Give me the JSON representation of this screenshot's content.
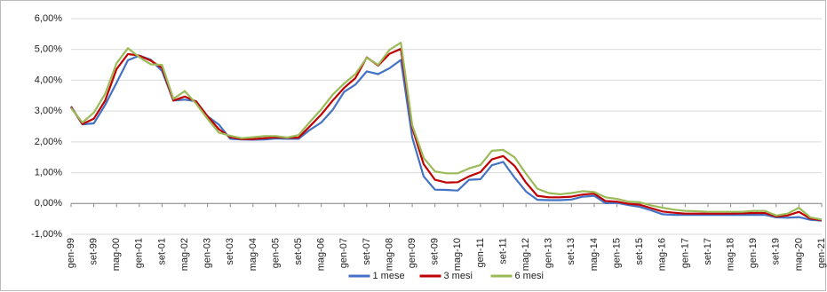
{
  "chart_data": {
    "type": "line",
    "categories": [
      "gen-99",
      null,
      "set-99",
      null,
      "mag-00",
      null,
      "gen-01",
      null,
      "set-01",
      null,
      "mag-02",
      null,
      "gen-03",
      null,
      "set-03",
      null,
      "mag-04",
      null,
      "gen-05",
      null,
      "set-05",
      null,
      "mag-06",
      null,
      "gen-07",
      null,
      "set-07",
      null,
      "mag-08",
      null,
      "gen-09",
      null,
      "set-09",
      null,
      "mag-10",
      null,
      "gen-11",
      null,
      "set-11",
      null,
      "mag-12",
      null,
      "gen-13",
      null,
      "set-13",
      null,
      "mag-14",
      null,
      "gen-15",
      null,
      "set-15",
      null,
      "mag-16",
      null,
      "gen-17",
      null,
      "set-17",
      null,
      "mag-18",
      null,
      "gen-19",
      null,
      "set-19",
      null,
      "mag-20",
      null,
      "gen-21"
    ],
    "series": [
      {
        "name": "1 mese",
        "color": "#4472c4",
        "values": [
          3.15,
          2.57,
          2.6,
          3.2,
          3.92,
          4.65,
          4.8,
          4.67,
          4.3,
          3.34,
          3.37,
          3.32,
          2.83,
          2.56,
          2.1,
          2.08,
          2.07,
          2.08,
          2.11,
          2.1,
          2.1,
          2.39,
          2.63,
          3.04,
          3.62,
          3.86,
          4.29,
          4.2,
          4.39,
          4.66,
          2.14,
          0.88,
          0.45,
          0.44,
          0.42,
          0.77,
          0.79,
          1.24,
          1.35,
          0.84,
          0.39,
          0.12,
          0.11,
          0.11,
          0.13,
          0.22,
          0.25,
          0.01,
          0.02,
          -0.05,
          -0.11,
          -0.22,
          -0.35,
          -0.37,
          -0.37,
          -0.37,
          -0.37,
          -0.37,
          -0.37,
          -0.37,
          -0.37,
          -0.37,
          -0.45,
          -0.46,
          -0.44,
          -0.53,
          -0.56
        ]
      },
      {
        "name": "3 mesi",
        "color": "#c00000",
        "values": [
          3.13,
          2.58,
          2.75,
          3.34,
          4.36,
          4.85,
          4.8,
          4.64,
          4.4,
          3.34,
          3.47,
          3.31,
          2.83,
          2.41,
          2.15,
          2.09,
          2.09,
          2.12,
          2.15,
          2.13,
          2.14,
          2.51,
          2.89,
          3.34,
          3.75,
          4.07,
          4.74,
          4.48,
          4.86,
          5.02,
          2.46,
          1.28,
          0.77,
          0.68,
          0.69,
          0.88,
          1.02,
          1.43,
          1.54,
          1.22,
          0.68,
          0.25,
          0.2,
          0.2,
          0.22,
          0.29,
          0.32,
          0.08,
          0.06,
          -0.01,
          -0.04,
          -0.15,
          -0.26,
          -0.3,
          -0.33,
          -0.33,
          -0.33,
          -0.33,
          -0.33,
          -0.32,
          -0.31,
          -0.31,
          -0.42,
          -0.39,
          -0.27,
          -0.49,
          -0.54
        ]
      },
      {
        "name": "6 mesi",
        "color": "#9bbb59",
        "values": [
          3.1,
          2.63,
          2.95,
          3.56,
          4.55,
          5.04,
          4.75,
          4.52,
          4.5,
          3.4,
          3.65,
          3.24,
          2.75,
          2.3,
          2.2,
          2.12,
          2.15,
          2.19,
          2.19,
          2.14,
          2.22,
          2.65,
          3.06,
          3.53,
          3.89,
          4.2,
          4.73,
          4.5,
          4.99,
          5.22,
          2.54,
          1.48,
          1.04,
          0.98,
          0.98,
          1.14,
          1.25,
          1.71,
          1.74,
          1.5,
          0.97,
          0.48,
          0.34,
          0.3,
          0.34,
          0.4,
          0.37,
          0.2,
          0.15,
          0.06,
          0.04,
          -0.06,
          -0.14,
          -0.2,
          -0.24,
          -0.25,
          -0.27,
          -0.27,
          -0.27,
          -0.27,
          -0.24,
          -0.24,
          -0.39,
          -0.33,
          -0.14,
          -0.45,
          -0.52
        ]
      }
    ],
    "ylim": [
      -1,
      6
    ],
    "yticks": [
      {
        "value": -1,
        "label": "-1,00%"
      },
      {
        "value": 0,
        "label": "0,00%"
      },
      {
        "value": 1,
        "label": "1,00%"
      },
      {
        "value": 2,
        "label": "2,00%"
      },
      {
        "value": 3,
        "label": "3,00%"
      },
      {
        "value": 4,
        "label": "4,00%"
      },
      {
        "value": 5,
        "label": "5,00%"
      },
      {
        "value": 6,
        "label": "6,00%"
      }
    ],
    "grid": true,
    "legend": "bottom"
  }
}
